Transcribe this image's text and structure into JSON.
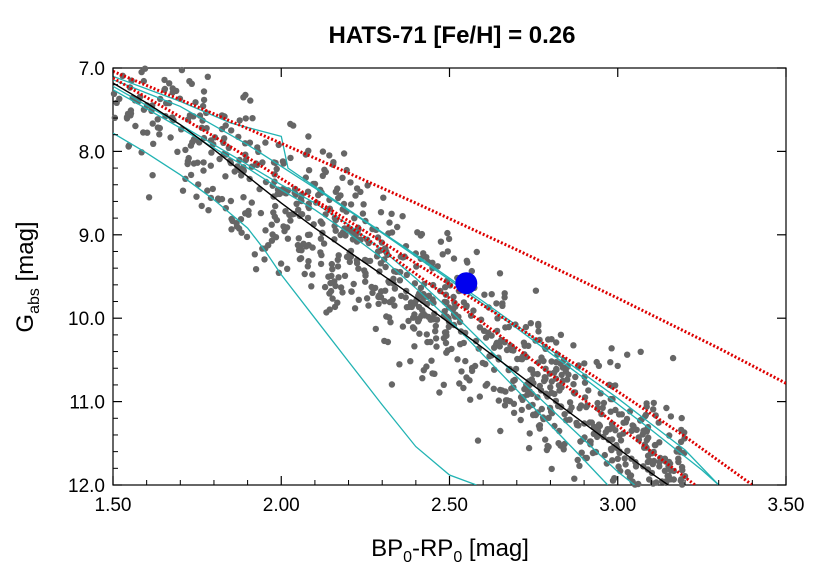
{
  "chart_data": {
    "type": "scatter",
    "title": "HATS-71 [Fe/H] = 0.26",
    "xlabel": {
      "base": "BP",
      "sub1": "0",
      "mid": "-RP",
      "sub2": "0",
      "unit": " [mag]"
    },
    "ylabel": {
      "base": "G",
      "sub": "abs",
      "unit": " [mag]"
    },
    "xlim": [
      1.5,
      3.5
    ],
    "ylim": [
      12.0,
      7.0
    ],
    "y_inverted": true,
    "x_ticks": [
      "1.50",
      "2.00",
      "2.50",
      "3.00",
      "3.50"
    ],
    "x_tick_values": [
      1.5,
      2.0,
      2.5,
      3.0,
      3.5
    ],
    "y_ticks": [
      "7.0",
      "8.0",
      "9.0",
      "10.0",
      "11.0",
      "12.0"
    ],
    "y_tick_values": [
      7.0,
      8.0,
      9.0,
      10.0,
      11.0,
      12.0
    ],
    "grid": false,
    "colors": {
      "points": "#666666",
      "target": "#0000ee",
      "isochrones": "#22b3b3",
      "black_sequence": "#000000",
      "red_dotted": "#dd0000"
    },
    "target": {
      "x": 2.55,
      "y": 9.58
    },
    "black_sequence": [
      [
        1.5,
        7.18
      ],
      [
        1.6,
        7.42
      ],
      [
        1.7,
        7.68
      ],
      [
        1.8,
        7.98
      ],
      [
        1.9,
        8.3
      ],
      [
        2.0,
        8.62
      ],
      [
        2.1,
        8.92
      ],
      [
        2.2,
        9.2
      ],
      [
        2.3,
        9.48
      ],
      [
        2.4,
        9.76
      ],
      [
        2.5,
        10.06
      ],
      [
        2.6,
        10.36
      ],
      [
        2.7,
        10.66
      ],
      [
        2.8,
        10.96
      ],
      [
        2.9,
        11.26
      ],
      [
        3.0,
        11.56
      ],
      [
        3.1,
        11.86
      ],
      [
        3.15,
        12.0
      ]
    ],
    "red_dotted_lines": [
      [
        [
          1.5,
          7.04
        ],
        [
          1.8,
          7.55
        ],
        [
          2.1,
          8.08
        ],
        [
          2.4,
          8.62
        ],
        [
          2.7,
          9.18
        ],
        [
          3.0,
          9.76
        ],
        [
          3.3,
          10.36
        ],
        [
          3.5,
          10.78
        ]
      ],
      [
        [
          1.5,
          7.12
        ],
        [
          1.8,
          7.82
        ],
        [
          2.1,
          8.58
        ],
        [
          2.4,
          9.34
        ],
        [
          2.7,
          10.1
        ],
        [
          3.0,
          10.88
        ],
        [
          3.2,
          11.42
        ],
        [
          3.4,
          12.0
        ]
      ]
    ],
    "red_dotted_inner": [
      [
        [
          2.1,
          8.6
        ],
        [
          2.3,
          9.18
        ],
        [
          2.5,
          9.76
        ],
        [
          2.7,
          10.36
        ],
        [
          2.9,
          10.98
        ],
        [
          3.1,
          11.6
        ],
        [
          3.23,
          12.0
        ]
      ]
    ],
    "isochrones": [
      [
        [
          1.5,
          7.78
        ],
        [
          1.6,
          8.02
        ],
        [
          1.7,
          8.28
        ],
        [
          1.8,
          8.58
        ],
        [
          1.9,
          8.92
        ],
        [
          1.95,
          9.18
        ],
        [
          2.0,
          9.48
        ],
        [
          2.1,
          10.0
        ],
        [
          2.2,
          10.52
        ],
        [
          2.3,
          11.04
        ],
        [
          2.4,
          11.54
        ],
        [
          2.5,
          11.88
        ],
        [
          2.58,
          12.0
        ]
      ],
      [
        [
          1.5,
          7.22
        ],
        [
          1.7,
          7.68
        ],
        [
          1.9,
          8.16
        ],
        [
          2.0,
          8.4
        ],
        [
          2.1,
          8.62
        ],
        [
          2.2,
          8.88
        ],
        [
          2.3,
          9.18
        ],
        [
          2.4,
          9.52
        ],
        [
          2.5,
          9.9
        ],
        [
          2.6,
          10.3
        ],
        [
          2.7,
          10.7
        ],
        [
          2.8,
          11.08
        ],
        [
          2.9,
          11.46
        ],
        [
          3.0,
          11.84
        ],
        [
          3.05,
          12.0
        ]
      ],
      [
        [
          1.5,
          7.26
        ],
        [
          1.7,
          7.72
        ],
        [
          1.9,
          8.2
        ],
        [
          2.0,
          8.46
        ],
        [
          2.1,
          8.7
        ],
        [
          2.2,
          8.98
        ],
        [
          2.3,
          9.28
        ],
        [
          2.4,
          9.64
        ],
        [
          2.5,
          10.02
        ],
        [
          2.6,
          10.44
        ],
        [
          2.7,
          10.86
        ],
        [
          2.8,
          11.28
        ],
        [
          2.9,
          11.7
        ],
        [
          2.97,
          12.0
        ]
      ],
      [
        [
          1.5,
          7.1
        ],
        [
          1.7,
          7.4
        ],
        [
          1.85,
          7.66
        ],
        [
          2.0,
          7.82
        ],
        [
          2.02,
          8.2
        ],
        [
          2.2,
          8.7
        ],
        [
          2.4,
          9.24
        ],
        [
          2.6,
          9.8
        ],
        [
          2.8,
          10.38
        ],
        [
          3.0,
          10.96
        ],
        [
          3.2,
          11.58
        ],
        [
          3.3,
          12.0
        ]
      ],
      [
        [
          1.5,
          7.14
        ],
        [
          1.7,
          7.46
        ],
        [
          1.9,
          7.92
        ],
        [
          2.1,
          8.44
        ],
        [
          2.3,
          8.98
        ],
        [
          2.5,
          9.54
        ],
        [
          2.7,
          10.12
        ],
        [
          2.9,
          10.72
        ],
        [
          3.1,
          11.34
        ],
        [
          3.25,
          11.82
        ],
        [
          3.3,
          12.0
        ]
      ]
    ]
  }
}
